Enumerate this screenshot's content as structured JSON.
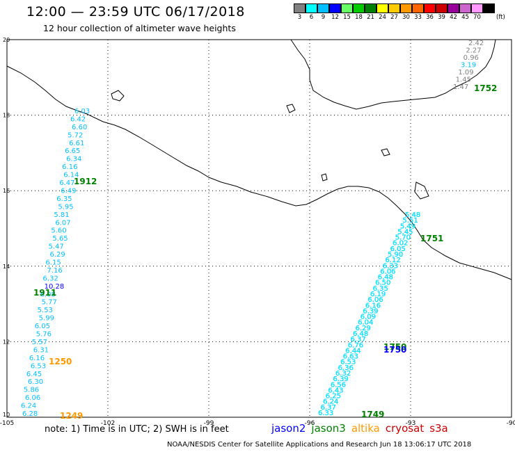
{
  "header": {
    "title": "12:00 — 23:59 UTC 06/17/2018",
    "subtitle": "12 hour collection of altimeter wave heights"
  },
  "colorbar": {
    "unit": "(ft)",
    "bins": [
      {
        "label": "3",
        "color": "#808080"
      },
      {
        "label": "6",
        "color": "#00ffff"
      },
      {
        "label": "9",
        "color": "#00bfff"
      },
      {
        "label": "12",
        "color": "#0000ff"
      },
      {
        "label": "15",
        "color": "#66ff66"
      },
      {
        "label": "18",
        "color": "#00cc00"
      },
      {
        "label": "21",
        "color": "#008000"
      },
      {
        "label": "24",
        "color": "#ffff00"
      },
      {
        "label": "27",
        "color": "#ffcc00"
      },
      {
        "label": "30",
        "color": "#ff9900"
      },
      {
        "label": "33",
        "color": "#ff6600"
      },
      {
        "label": "36",
        "color": "#ff0000"
      },
      {
        "label": "39",
        "color": "#cc0000"
      },
      {
        "label": "42",
        "color": "#990099"
      },
      {
        "label": "45",
        "color": "#cc66cc"
      },
      {
        "label": "70",
        "color": "#ff99ff"
      },
      {
        "label": "",
        "color": "#000000"
      }
    ]
  },
  "map": {
    "lon_range": [
      -105,
      -90
    ],
    "lat_range": [
      10,
      20
    ],
    "lon_ticks": [
      "-105",
      "-102",
      "-99",
      "-96",
      "-93",
      "-90"
    ],
    "lat_ticks": [
      "10",
      "12",
      "14",
      "16",
      "18",
      "20"
    ],
    "track_west_times": [
      {
        "label": "1912",
        "color": "#008000"
      },
      {
        "label": "1911",
        "color": "#008000"
      },
      {
        "label": "1250",
        "color": "#ff9900"
      },
      {
        "label": "1249",
        "color": "#ff9900"
      }
    ],
    "track_east_times": [
      {
        "label": "1751",
        "color": "#008000"
      },
      {
        "label": "1750",
        "color": "#008000"
      },
      {
        "label": "1750",
        "color": "#0000ff"
      },
      {
        "label": "1749",
        "color": "#008000"
      }
    ],
    "track_ne_time": {
      "label": "1752",
      "color": "#008000"
    },
    "track_west_values": [
      "6.03",
      "6.42",
      "6.60",
      "5.72",
      "6.61",
      "6.65",
      "6.34",
      "6.16",
      "6.14",
      "6.47",
      "6.49",
      "6.35",
      "5.95",
      "5.81",
      "6.07",
      "5.60",
      "5.65",
      "5.47",
      "6.29",
      "6.15",
      "7.16",
      "6.32",
      "10.28",
      "6.08",
      "5.77",
      "5.53",
      "5.99",
      "6.05",
      "5.76",
      "5.57",
      "6.31",
      "6.16",
      "6.53",
      "6.45",
      "6.30",
      "5.86",
      "6.06",
      "6.24",
      "6.28"
    ],
    "track_east_values": [
      "5.48",
      "5.51",
      "5.49",
      "5.45",
      "5.70",
      "6.02",
      "6.05",
      "5.90",
      "6.12",
      "6.33",
      "6.06",
      "6.48",
      "6.50",
      "6.35",
      "6.19",
      "6.06",
      "6.16",
      "6.39",
      "6.09",
      "6.04",
      "6.29",
      "6.48",
      "6.37",
      "6.76",
      "6.44",
      "6.63",
      "6.53",
      "6.36",
      "6.32",
      "6.39",
      "6.56",
      "6.43",
      "6.25",
      "6.24",
      "6.37",
      "6.33"
    ],
    "track_ne_values": [
      {
        "v": "2.42",
        "color": "#808080"
      },
      {
        "v": "2.27",
        "color": "#808080"
      },
      {
        "v": "0.96",
        "color": "#808080"
      },
      {
        "v": "3.19",
        "color": "#00bfff"
      },
      {
        "v": "1.09",
        "color": "#808080"
      },
      {
        "v": "1.45",
        "color": "#808080"
      },
      {
        "v": "1.47",
        "color": "#808080"
      }
    ]
  },
  "footer": {
    "note": "note:  1) Time is in UTC;  2) SWH is in feet",
    "legend": [
      {
        "label": "jason2",
        "color": "#0000ff"
      },
      {
        "label": "jason3",
        "color": "#008000"
      },
      {
        "label": "altika",
        "color": "#ff9900"
      },
      {
        "label": "cryosat",
        "color": "#cc0000"
      },
      {
        "label": "s3a",
        "color": "#cc0000"
      }
    ],
    "credit": "NOAA/NESDIS Center for Satellite Applications and Research     Jun 18 13:06:17 UTC 2018"
  }
}
